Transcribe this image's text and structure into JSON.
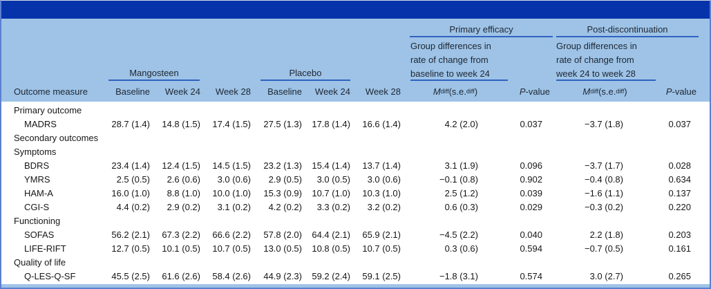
{
  "colors": {
    "top_bar": "#0633aa",
    "header_bg": "#9ec3e6",
    "rule_blue": "#2f62c0",
    "outer_border": "#5d7fd1"
  },
  "table": {
    "column_groups": {
      "mangosteen": "Mangosteen",
      "placebo": "Placebo",
      "primary_efficacy": "Primary efficacy",
      "post_discontinuation": "Post-discontinuation"
    },
    "subheaders": {
      "primary_diff_lines": [
        "Group differences in",
        "rate of change from",
        "baseline to week 24"
      ],
      "post_diff_lines": [
        "Group differences in",
        "rate of change from",
        "week 24 to week 28"
      ]
    },
    "columns": {
      "outcome": "Outcome measure",
      "baseline": "Baseline",
      "week24": "Week 24",
      "week28": "Week 28",
      "mdiff": {
        "m": "M",
        "msub": "diff",
        "se": " (s.e.",
        "sesub": "diff",
        "close": ")"
      },
      "pvalue": {
        "p": "P",
        "rest": "-value"
      }
    },
    "rows": [
      {
        "type": "section",
        "label": "Primary outcome",
        "values": []
      },
      {
        "type": "measure",
        "label": "MADRS",
        "values": [
          "28.7 (1.4)",
          "14.8 (1.5)",
          "17.4 (1.5)",
          "27.5 (1.3)",
          "17.8 (1.4)",
          "16.6 (1.4)",
          "4.2 (2.0)",
          "0.037",
          "−3.7 (1.8)",
          "0.037"
        ]
      },
      {
        "type": "section",
        "label": "Secondary outcomes",
        "values": []
      },
      {
        "type": "section",
        "label": "Symptoms",
        "values": []
      },
      {
        "type": "measure",
        "label": "BDRS",
        "values": [
          "23.4 (1.4)",
          "12.4 (1.5)",
          "14.5 (1.5)",
          "23.2 (1.3)",
          "15.4 (1.4)",
          "13.7 (1.4)",
          "3.1 (1.9)",
          "0.096",
          "−3.7 (1.7)",
          "0.028"
        ]
      },
      {
        "type": "measure",
        "label": "YMRS",
        "values": [
          "2.5 (0.5)",
          "2.6 (0.6)",
          "3.0 (0.6)",
          "2.9 (0.5)",
          "3.0 (0.5)",
          "3.0 (0.6)",
          "−0.1 (0.8)",
          "0.902",
          "−0.4 (0.8)",
          "0.634"
        ]
      },
      {
        "type": "measure",
        "label": "HAM-A",
        "values": [
          "16.0 (1.0)",
          "8.8 (1.0)",
          "10.0 (1.0)",
          "15.3 (0.9)",
          "10.7 (1.0)",
          "10.3 (1.0)",
          "2.5 (1.2)",
          "0.039",
          "−1.6 (1.1)",
          "0.137"
        ]
      },
      {
        "type": "measure",
        "label": "CGI-S",
        "values": [
          "4.4 (0.2)",
          "2.9 (0.2)",
          "3.1 (0.2)",
          "4.2 (0.2)",
          "3.3 (0.2)",
          "3.2 (0.2)",
          "0.6 (0.3)",
          "0.029",
          "−0.3 (0.2)",
          "0.220"
        ]
      },
      {
        "type": "section",
        "label": "Functioning",
        "values": []
      },
      {
        "type": "measure",
        "label": "SOFAS",
        "values": [
          "56.2 (2.1)",
          "67.3 (2.2)",
          "66.6 (2.2)",
          "57.8 (2.0)",
          "64.4 (2.1)",
          "65.9 (2.1)",
          "−4.5 (2.2)",
          "0.040",
          "2.2 (1.8)",
          "0.203"
        ]
      },
      {
        "type": "measure",
        "label": "LIFE-RIFT",
        "values": [
          "12.7 (0.5)",
          "10.1 (0.5)",
          "10.7 (0.5)",
          "13.0 (0.5)",
          "10.8 (0.5)",
          "10.7 (0.5)",
          "0.3 (0.6)",
          "0.594",
          "−0.7 (0.5)",
          "0.161"
        ]
      },
      {
        "type": "section",
        "label": "Quality of life",
        "values": []
      },
      {
        "type": "measure",
        "label": "Q-LES-Q-SF",
        "values": [
          "45.5 (2.5)",
          "61.6 (2.6)",
          "58.4 (2.6)",
          "44.9 (2.3)",
          "59.2 (2.4)",
          "59.1 (2.5)",
          "−1.8 (3.1)",
          "0.574",
          "3.0 (2.7)",
          "0.265"
        ]
      }
    ]
  }
}
